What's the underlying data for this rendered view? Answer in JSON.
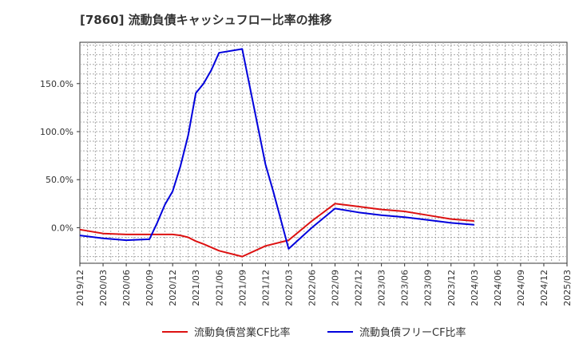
{
  "chart_data": {
    "type": "line",
    "title": "[7860]  流動負債キャッシュフロー比率の推移",
    "x": [
      "2019/12",
      "2020/03",
      "2020/06",
      "2020/09",
      "2020/12",
      "2021/03",
      "2021/06",
      "2021/09",
      "2021/12",
      "2022/03",
      "2022/06",
      "2022/09",
      "2022/12",
      "2023/03",
      "2023/06",
      "2023/09",
      "2023/12",
      "2024/03",
      "2024/06",
      "2024/09",
      "2024/12",
      "2025/03"
    ],
    "ylim": [
      -37,
      193
    ],
    "yticks": [
      0,
      50,
      100,
      150
    ],
    "ytick_labels": [
      "0.0%",
      "50.0%",
      "100.0%",
      "150.0%"
    ],
    "grid": true,
    "legend_position": "bottom",
    "series": [
      {
        "name": "流動負債営業CF比率",
        "color": "#dd1111",
        "points": [
          [
            "2019/12",
            -2
          ],
          [
            "2020/03",
            -6
          ],
          [
            "2020/06",
            -7
          ],
          [
            "2020/09",
            -7
          ],
          [
            "2020/12",
            -7
          ],
          [
            "2021/01",
            -8
          ],
          [
            "2021/02",
            -10
          ],
          [
            "2021/03",
            -14
          ],
          [
            "2021/04",
            -17
          ],
          [
            "2021/06",
            -24
          ],
          [
            "2021/09",
            -30
          ],
          [
            "2021/12",
            -19
          ],
          [
            "2022/03",
            -13
          ],
          [
            "2022/06",
            7
          ],
          [
            "2022/09",
            25
          ],
          [
            "2022/12",
            22
          ],
          [
            "2023/03",
            19
          ],
          [
            "2023/06",
            17
          ],
          [
            "2023/09",
            13
          ],
          [
            "2023/12",
            9
          ],
          [
            "2024/03",
            7
          ]
        ]
      },
      {
        "name": "流動負債フリーCF比率",
        "color": "#0000dd",
        "points": [
          [
            "2019/12",
            -8
          ],
          [
            "2020/03",
            -11
          ],
          [
            "2020/06",
            -13
          ],
          [
            "2020/09",
            -12
          ],
          [
            "2020/10",
            5
          ],
          [
            "2020/11",
            24
          ],
          [
            "2020/12",
            38
          ],
          [
            "2021/01",
            64
          ],
          [
            "2021/02",
            96
          ],
          [
            "2021/03",
            140
          ],
          [
            "2021/04",
            150
          ],
          [
            "2021/05",
            164
          ],
          [
            "2021/06",
            182
          ],
          [
            "2021/09",
            186
          ],
          [
            "2021/12",
            66
          ],
          [
            "2022/01",
            38
          ],
          [
            "2022/03",
            -22
          ],
          [
            "2022/06",
            0
          ],
          [
            "2022/09",
            20
          ],
          [
            "2022/12",
            16
          ],
          [
            "2023/03",
            13
          ],
          [
            "2023/06",
            11
          ],
          [
            "2023/09",
            8
          ],
          [
            "2023/12",
            5
          ],
          [
            "2024/03",
            3
          ]
        ]
      }
    ]
  }
}
